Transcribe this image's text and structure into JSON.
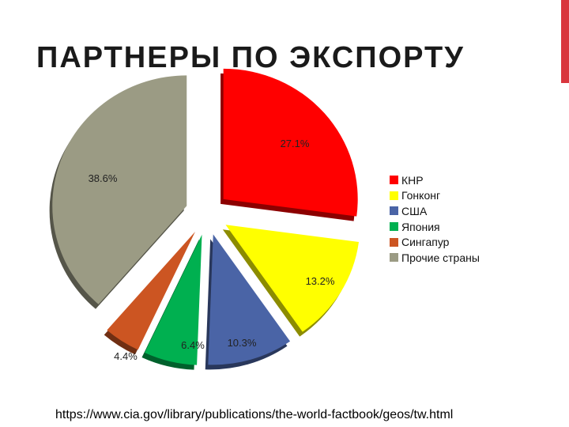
{
  "slide": {
    "title": "ПАРТНЕРЫ ПО ЭКСПОРТУ",
    "source": "https://www.cia.gov/library/publications/the-world-factbook/geos/tw.html",
    "accent_color": "#d9363e"
  },
  "chart_data": {
    "type": "pie",
    "exploded": true,
    "three_d": true,
    "legend_position": "right",
    "slices": [
      {
        "name": "КНР",
        "value": 27.1,
        "label": "27.1%",
        "color": "#ff0000"
      },
      {
        "name": "Гонконг",
        "value": 13.2,
        "label": "13.2%",
        "color": "#ffff00"
      },
      {
        "name": "США",
        "value": 10.3,
        "label": "10.3%",
        "color": "#4a64a6"
      },
      {
        "name": "Япония",
        "value": 6.4,
        "label": "6.4%",
        "color": "#00b050"
      },
      {
        "name": "Сингапур",
        "value": 4.4,
        "label": "4.4%",
        "color": "#cc5522"
      },
      {
        "name": "Прочие страны",
        "value": 38.6,
        "label": "38.6%",
        "color": "#9b9b84"
      }
    ]
  }
}
